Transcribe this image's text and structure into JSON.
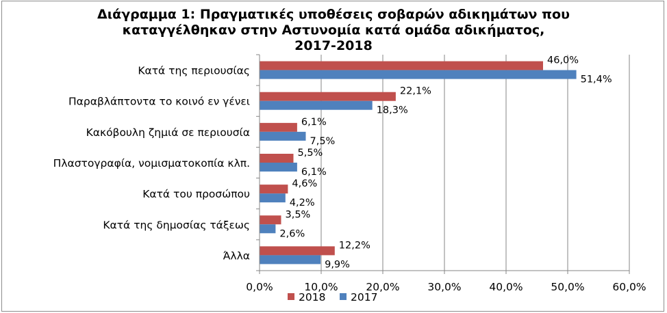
{
  "chart_data": {
    "type": "bar",
    "orientation": "horizontal",
    "title_lines": [
      "Διάγραμμα 1: Πραγματικές υποθέσεις σοβαρών αδικημάτων που",
      "καταγγέλθηκαν στην Αστυνομία κατά ομάδα αδικήματος,",
      "2017-2018"
    ],
    "categories": [
      "Κατά της περιουσίας",
      "Παραβλάπτοντα το κοινό εν γένει",
      "Κακόβουλη ζημιά σε περιουσία",
      "Πλαστογραφία, νομισματοκοπία κλπ.",
      "Κατά του προσώπου",
      "Κατά της δημοσίας τάξεως",
      "Άλλα"
    ],
    "series": [
      {
        "name": "2018",
        "color": "#c0504d",
        "values": [
          46.0,
          22.1,
          6.1,
          5.5,
          4.6,
          3.5,
          12.2
        ],
        "labels": [
          "46,0%",
          "22,1%",
          "6,1%",
          "5,5%",
          "4,6%",
          "3,5%",
          "12,2%"
        ]
      },
      {
        "name": "2017",
        "color": "#4f81bd",
        "values": [
          51.4,
          18.3,
          7.5,
          6.1,
          4.2,
          2.6,
          9.9
        ],
        "labels": [
          "51,4%",
          "18,3%",
          "7,5%",
          "6,1%",
          "4,2%",
          "2,6%",
          "9,9%"
        ]
      }
    ],
    "xlim": [
      0,
      60
    ],
    "x_ticks": [
      0,
      10,
      20,
      30,
      40,
      50,
      60
    ],
    "x_tick_labels": [
      "0,0%",
      "10,0%",
      "20,0%",
      "30,0%",
      "40,0%",
      "50,0%",
      "60,0%"
    ],
    "grid": true,
    "legend_position": "bottom"
  }
}
